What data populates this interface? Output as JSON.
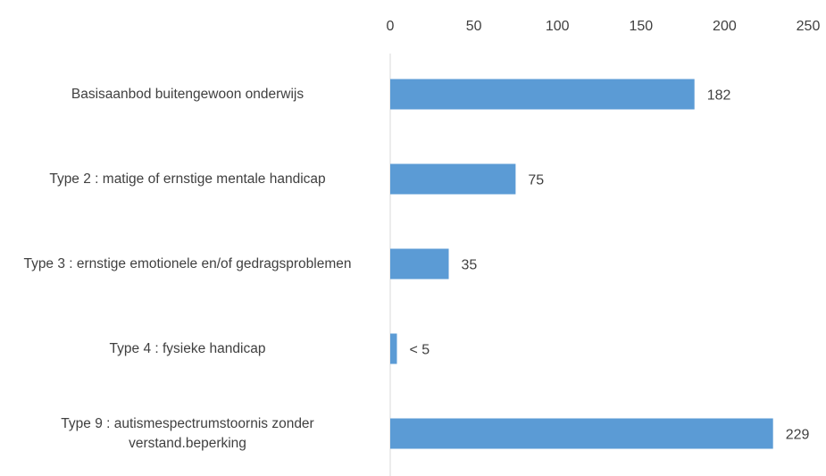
{
  "chart_data": {
    "type": "bar",
    "orientation": "horizontal",
    "categories": [
      "Basisaanbod buitengewoon onderwijs",
      "Type 2 : matige of ernstige mentale handicap",
      "Type 3 : ernstige emotionele en/of gedragsproblemen",
      "Type 4 : fysieke handicap",
      "Type 9 : autismespectrumstoornis zonder verstand.beperking"
    ],
    "values": [
      182,
      75,
      35,
      4,
      229
    ],
    "value_labels": [
      "182",
      "75",
      "35",
      "< 5",
      "229"
    ],
    "color": "#5b9bd5",
    "xlim": [
      0,
      250
    ],
    "xticks": [
      0,
      50,
      100,
      150,
      200,
      250
    ],
    "grid": false
  }
}
